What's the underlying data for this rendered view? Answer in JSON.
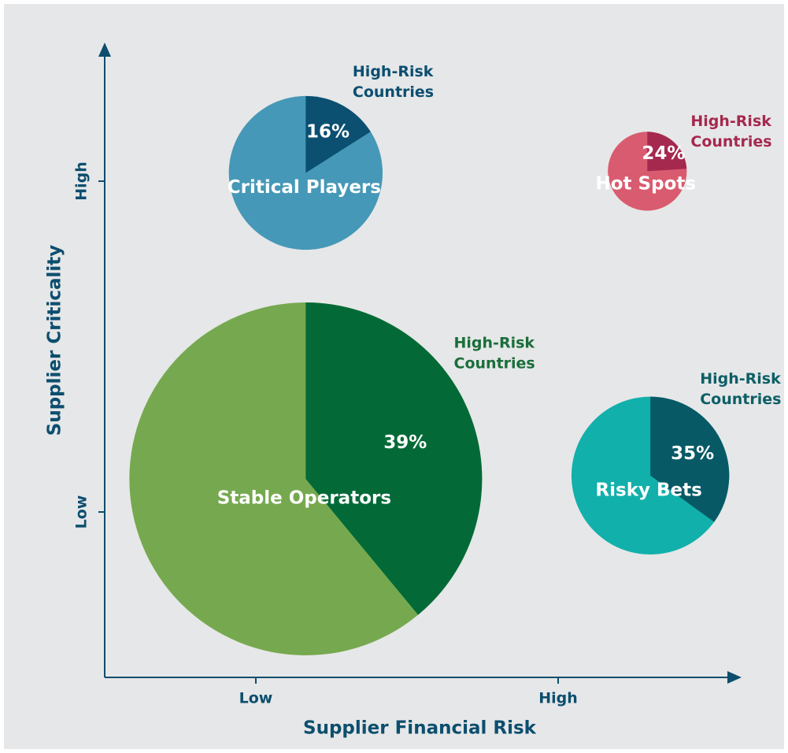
{
  "chart_data": {
    "type": "bubble-pie",
    "x_label": "Supplier Financial Risk",
    "y_label": "Supplier Criticality",
    "xlim": [
      0,
      4
    ],
    "xticks": [
      {
        "value": 1,
        "label": "Low"
      },
      {
        "value": 3,
        "label": "High"
      }
    ],
    "ylim": [
      0,
      3.8
    ],
    "yticks": [
      {
        "value": 1,
        "label": "Low"
      },
      {
        "value": 3,
        "label": "High"
      }
    ],
    "axis_color": "#0c4e6e",
    "points": [
      {
        "name": "Critical Players",
        "x": 1.33,
        "y": 3.05,
        "size": 19,
        "share": 16,
        "share_label": "16%",
        "annotation": [
          "High-Risk",
          "Countries"
        ],
        "color": "#4598b7",
        "share_color": "#0b4f71",
        "annotation_color": "#0b4f71"
      },
      {
        "name": "Hot Spots",
        "x": 3.59,
        "y": 3.06,
        "size": 5,
        "share": 24,
        "share_label": "24%",
        "annotation": [
          "High-Risk",
          "Countries"
        ],
        "color": "#d95b6f",
        "share_color": "#a5294f",
        "annotation_color": "#a5294f"
      },
      {
        "name": "Stable Operators",
        "x": 1.33,
        "y": 1.2,
        "size": 100,
        "share": 39,
        "share_label": "39%",
        "annotation": [
          "High-Risk",
          "Countries"
        ],
        "color": "#76a94f",
        "share_color": "#036a37",
        "annotation_color": "#1a6e3a"
      },
      {
        "name": "Risky Bets",
        "x": 3.61,
        "y": 1.22,
        "size": 20,
        "share": 35,
        "share_label": "35%",
        "annotation": [
          "High-Risk",
          "Countries"
        ],
        "color": "#12b0ab",
        "share_color": "#075966",
        "annotation_color": "#0d5f66"
      }
    ]
  }
}
